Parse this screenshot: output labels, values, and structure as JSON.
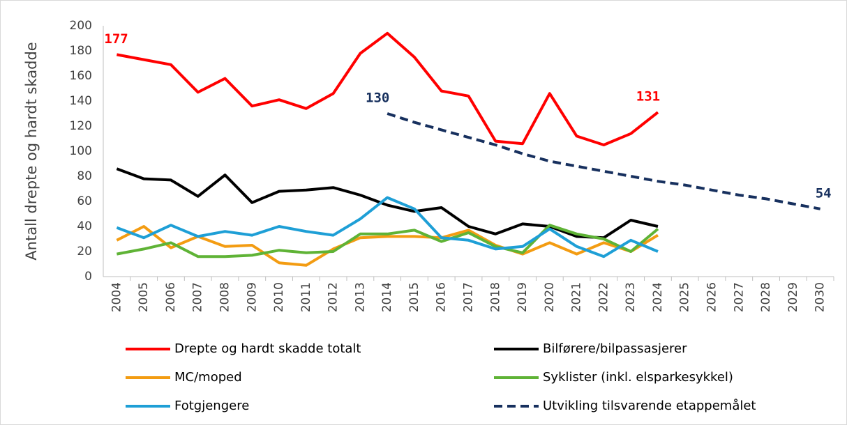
{
  "chart_data": {
    "type": "line",
    "y_axis_label": "Antall drepte og hardt skadde",
    "categories": [
      "2004",
      "2005",
      "2006",
      "2007",
      "2008",
      "2009",
      "2010",
      "2011",
      "2012",
      "2013",
      "2014",
      "2015",
      "2016",
      "2017",
      "2018",
      "2019",
      "2020",
      "2021",
      "2022",
      "2023",
      "2024",
      "2025",
      "2026",
      "2027",
      "2028",
      "2029",
      "2030"
    ],
    "ylim": [
      0,
      200
    ],
    "yticks": [
      0,
      20,
      40,
      60,
      80,
      100,
      120,
      140,
      160,
      180,
      200
    ],
    "grid": false,
    "legend": "bottom",
    "series": [
      {
        "name": "Drepte og hardt skadde totalt",
        "color": "#ff0000",
        "data_labels": [
          0,
          20
        ],
        "values": [
          177,
          173,
          169,
          147,
          158,
          136,
          141,
          134,
          146,
          178,
          194,
          175,
          148,
          144,
          108,
          106,
          146,
          112,
          105,
          114,
          131,
          null,
          null,
          null,
          null,
          null,
          null
        ]
      },
      {
        "name": "Bilførere/bilpassasjerer",
        "color": "#000000",
        "values": [
          86,
          78,
          77,
          64,
          81,
          59,
          68,
          69,
          71,
          65,
          57,
          52,
          55,
          40,
          34,
          42,
          40,
          32,
          31,
          45,
          40,
          null,
          null,
          null,
          null,
          null,
          null
        ]
      },
      {
        "name": "MC/moped",
        "color": "#f39c12",
        "values": [
          29,
          40,
          23,
          32,
          24,
          25,
          11,
          9,
          22,
          31,
          32,
          32,
          31,
          37,
          25,
          18,
          27,
          18,
          27,
          20,
          33,
          null,
          null,
          null,
          null,
          null,
          null
        ]
      },
      {
        "name": "Syklister (inkl. elsparkesykkel)",
        "color": "#5fb336",
        "values": [
          18,
          22,
          27,
          16,
          16,
          17,
          21,
          19,
          20,
          34,
          34,
          37,
          28,
          35,
          24,
          19,
          41,
          34,
          30,
          20,
          38,
          null,
          null,
          null,
          null,
          null,
          null
        ]
      },
      {
        "name": "Fotgjengere",
        "color": "#1e9fd6",
        "values": [
          39,
          31,
          41,
          32,
          36,
          33,
          40,
          36,
          33,
          46,
          63,
          54,
          31,
          29,
          22,
          24,
          38,
          24,
          16,
          29,
          20,
          null,
          null,
          null,
          null,
          null,
          null
        ]
      },
      {
        "name": "Utvikling tilsvarende etappemålet",
        "color": "#17305e",
        "dashed": true,
        "data_labels": [
          10,
          26
        ],
        "values": [
          null,
          null,
          null,
          null,
          null,
          null,
          null,
          null,
          null,
          null,
          130,
          123,
          117,
          111,
          105,
          98,
          92,
          88,
          84,
          80,
          76,
          73,
          69,
          65,
          62,
          58,
          54
        ]
      }
    ]
  }
}
